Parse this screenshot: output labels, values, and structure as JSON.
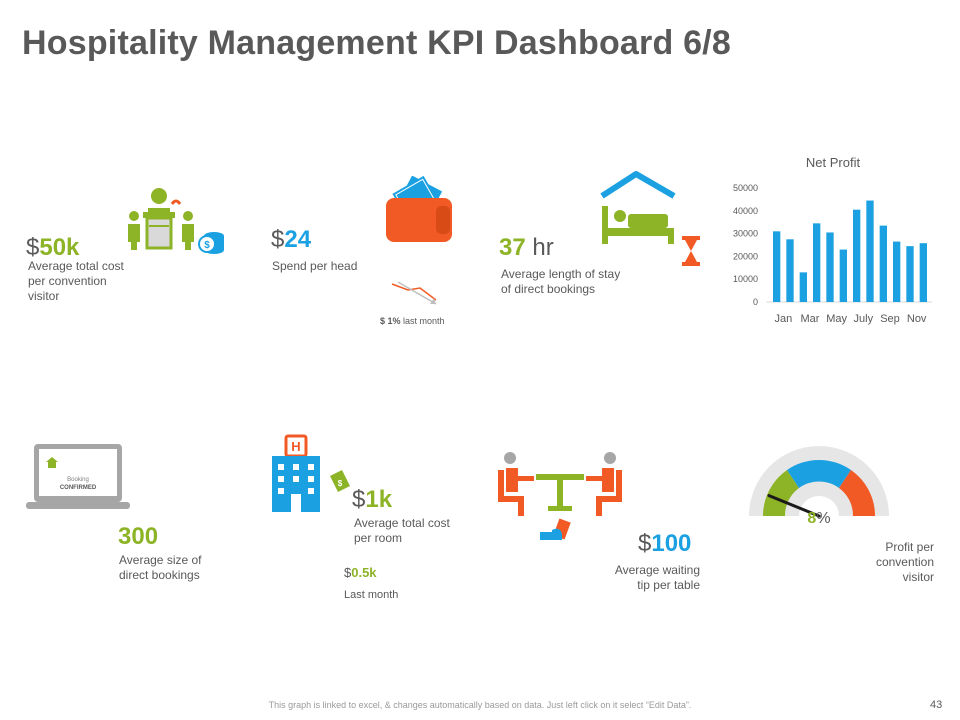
{
  "title": "Hospitality Management KPI Dashboard 6/8",
  "kpi1": {
    "currency": "$",
    "value": "50k",
    "label_lines": [
      "Average total cost",
      "per convention",
      "visitor"
    ]
  },
  "kpi2": {
    "currency": "$",
    "value": "24",
    "label": "Spend per head",
    "trend_pct": "$ 1%",
    "trend_text": "last month"
  },
  "kpi3": {
    "value": "37",
    "unit": "hr",
    "label_lines": [
      "Average length of stay",
      "of direct bookings"
    ]
  },
  "chart_data": {
    "type": "bar",
    "title": "Net Profit",
    "categories": [
      "Jan",
      "Feb",
      "Mar",
      "Apr",
      "May",
      "Jun",
      "July",
      "Aug",
      "Sep",
      "Oct",
      "Nov",
      "Dec"
    ],
    "tick_labels": [
      "Jan",
      "Mar",
      "May",
      "July",
      "Sep",
      "Nov"
    ],
    "values": [
      31000,
      27500,
      13000,
      34500,
      30500,
      23000,
      40500,
      44500,
      33500,
      26500,
      24500,
      25800
    ],
    "yticks": [
      0,
      10000,
      20000,
      30000,
      40000,
      50000
    ],
    "ylim": [
      0,
      50000
    ],
    "color": "#1BA1E2"
  },
  "kpi4": {
    "value": "300",
    "label_lines": [
      "Average size of",
      "direct bookings"
    ],
    "laptop_text": [
      "Booking",
      "CONFIRMED"
    ]
  },
  "kpi5": {
    "currency": "$",
    "value": "1k",
    "label_lines": [
      "Average total cost",
      "per room"
    ],
    "sub_currency": "$",
    "sub_value": "0.5k",
    "sub_label": "Last month"
  },
  "kpi6": {
    "currency": "$",
    "value": "100",
    "label_lines": [
      "Average waiting",
      "tip per table"
    ]
  },
  "kpi7": {
    "value": "8",
    "unit": "%",
    "label_lines": [
      "Profit per",
      "convention",
      "visitor"
    ],
    "gauge_fraction": 0.08
  },
  "footer": "This graph is linked to excel, & changes automatically based on data. Just left click on it select “Edit Data”.",
  "page_number": "43",
  "colors": {
    "green": "#8DB327",
    "blue": "#1BA1E2",
    "orange": "#F15A24",
    "gray": "#595959"
  }
}
